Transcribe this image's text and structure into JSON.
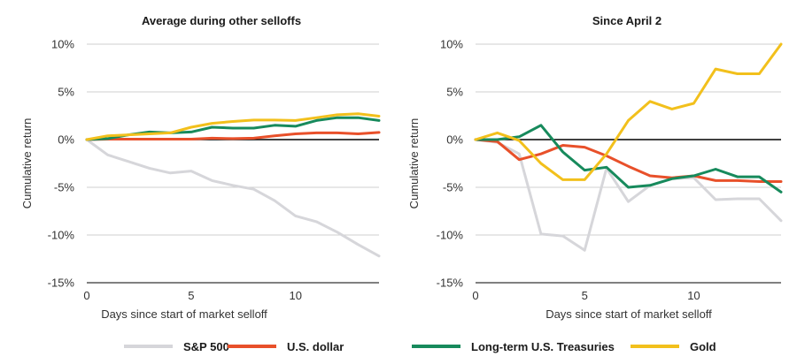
{
  "chart_data": [
    {
      "type": "line",
      "title": "Average during other selloffs",
      "xlabel": "Days since start of market selloff",
      "ylabel": "Cumulative return",
      "x": [
        0,
        1,
        2,
        3,
        4,
        5,
        6,
        7,
        8,
        9,
        10,
        11,
        12,
        13,
        14
      ],
      "xticks": [
        0,
        5,
        10
      ],
      "xtick_labels": [
        "0",
        "5",
        "10"
      ],
      "xlim": [
        0,
        14
      ],
      "ylim": [
        -15,
        10
      ],
      "yticks": [
        -15,
        -10,
        -5,
        0,
        5,
        10
      ],
      "ytick_labels": [
        "-15%",
        "-10%",
        "-5%",
        "0%",
        "5%",
        "10%"
      ],
      "grid": "horizontal",
      "series": [
        {
          "name": "S&P 500",
          "color": "#d6d6da",
          "values": [
            0,
            -1.6,
            -2.3,
            -3.0,
            -3.5,
            -3.3,
            -4.3,
            -4.8,
            -5.2,
            -6.4,
            -8.0,
            -8.6,
            -9.7,
            -11.0,
            -12.2
          ]
        },
        {
          "name": "U.S. dollar",
          "color": "#e8502a",
          "values": [
            0,
            0.05,
            0.05,
            0.05,
            0.05,
            0.05,
            0.15,
            0.1,
            0.15,
            0.4,
            0.6,
            0.7,
            0.7,
            0.6,
            0.75
          ]
        },
        {
          "name": "Long-term U.S. Treasuries",
          "color": "#178a5c",
          "values": [
            0,
            0.1,
            0.5,
            0.8,
            0.7,
            0.8,
            1.3,
            1.2,
            1.2,
            1.5,
            1.4,
            2.0,
            2.3,
            2.3,
            2.0
          ]
        },
        {
          "name": "Gold",
          "color": "#f2c01c",
          "values": [
            0,
            0.4,
            0.5,
            0.6,
            0.7,
            1.3,
            1.7,
            1.9,
            2.05,
            2.05,
            2.0,
            2.3,
            2.6,
            2.7,
            2.45
          ]
        }
      ]
    },
    {
      "type": "line",
      "title": "Since April 2",
      "xlabel": "Days since start of market selloff",
      "ylabel": "Cumulative return",
      "x": [
        0,
        1,
        2,
        3,
        4,
        5,
        6,
        7,
        8,
        9,
        10,
        11,
        12,
        13,
        14
      ],
      "xticks": [
        0,
        5,
        10
      ],
      "xtick_labels": [
        "0",
        "5",
        "10"
      ],
      "xlim": [
        0,
        14
      ],
      "ylim": [
        -15,
        10
      ],
      "yticks": [
        -15,
        -10,
        -5,
        0,
        5,
        10
      ],
      "ytick_labels": [
        "-15%",
        "-10%",
        "-5%",
        "0%",
        "5%",
        "10%"
      ],
      "grid": "horizontal",
      "series": [
        {
          "name": "S&P 500",
          "color": "#d6d6da",
          "values": [
            0,
            -0.3,
            -1.5,
            -9.9,
            -10.1,
            -11.6,
            -3.0,
            -6.5,
            -4.8,
            -4.1,
            -4.0,
            -6.3,
            -6.2,
            -6.2,
            -8.5
          ]
        },
        {
          "name": "U.S. dollar",
          "color": "#e8502a",
          "values": [
            0,
            -0.2,
            -2.1,
            -1.5,
            -0.6,
            -0.8,
            -1.7,
            -2.8,
            -3.8,
            -4.0,
            -3.8,
            -4.3,
            -4.3,
            -4.4,
            -4.4
          ]
        },
        {
          "name": "Long-term U.S. Treasuries",
          "color": "#178a5c",
          "values": [
            0,
            0,
            0.3,
            1.5,
            -1.3,
            -3.2,
            -2.9,
            -5.0,
            -4.8,
            -4.1,
            -3.8,
            -3.1,
            -3.9,
            -3.9,
            -5.5
          ]
        },
        {
          "name": "Gold",
          "color": "#f2c01c",
          "values": [
            0,
            0.7,
            -0.1,
            -2.5,
            -4.2,
            -4.2,
            -1.5,
            2.0,
            4.0,
            3.2,
            3.8,
            7.4,
            6.9,
            6.9,
            10.0
          ]
        }
      ]
    }
  ],
  "legend": {
    "position": "bottom",
    "items": [
      {
        "label": "S&P 500",
        "color": "#d6d6da"
      },
      {
        "label": "U.S. dollar",
        "color": "#e8502a"
      },
      {
        "label": "Long-term U.S. Treasuries",
        "color": "#178a5c"
      },
      {
        "label": "Gold",
        "color": "#f2c01c"
      }
    ]
  }
}
